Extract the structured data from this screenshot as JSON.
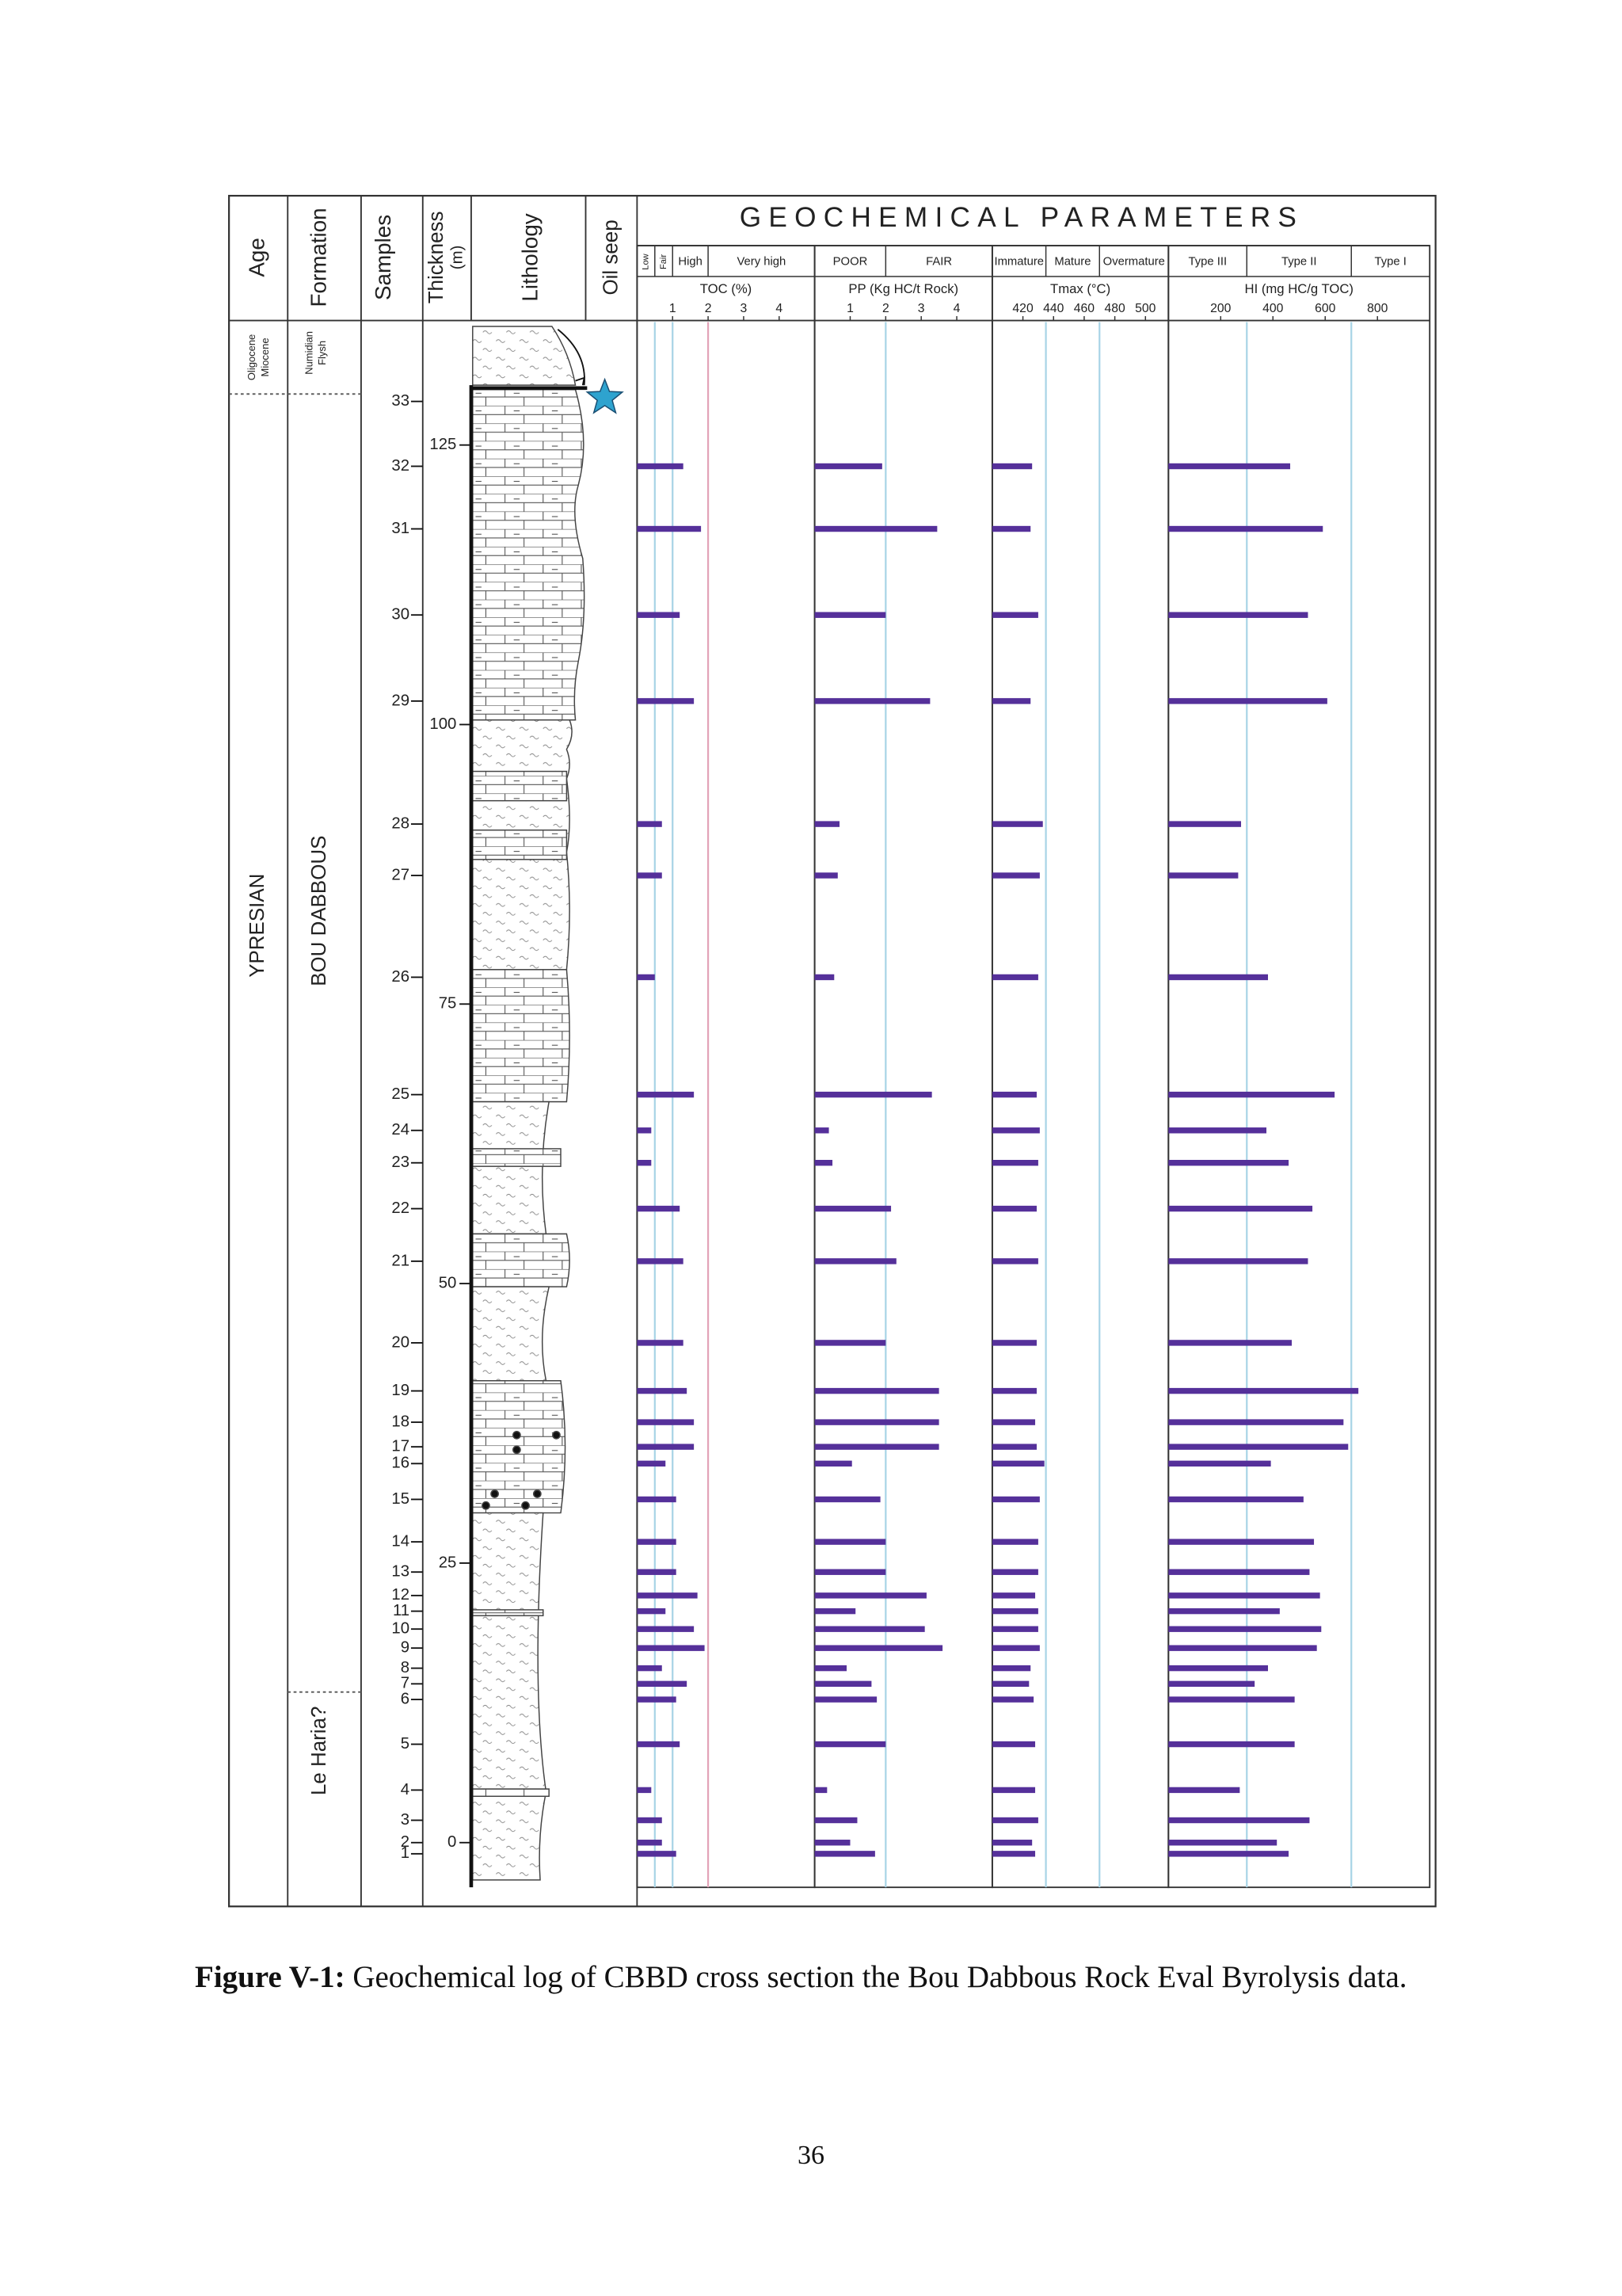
{
  "figure": {
    "columns": {
      "age": "Age",
      "formation": "Formation",
      "samples": "Samples",
      "thickness": [
        "Thickness",
        "(m)"
      ],
      "lithology": "Lithology",
      "oil_seep": "Oil seep"
    },
    "title": "GEOCHEMICAL PARAMETERS",
    "ages": {
      "top": [
        "Oligocene",
        "Miocene"
      ],
      "main": "YPRESIAN"
    },
    "formations": {
      "top": [
        "Numidian",
        "Flysh"
      ],
      "main": "BOU DABBOUS",
      "bottom": "Le Haria?"
    }
  },
  "chart_data": {
    "type": "bar",
    "categories": [
      "1",
      "2",
      "3",
      "4",
      "5",
      "6",
      "7",
      "8",
      "9",
      "10",
      "11",
      "12",
      "13",
      "14",
      "15",
      "16",
      "17",
      "18",
      "19",
      "20",
      "21",
      "22",
      "23",
      "24",
      "25",
      "26",
      "27",
      "28",
      "29",
      "30",
      "31",
      "32",
      "33"
    ],
    "thickness": [
      -1,
      0,
      2,
      4.7,
      8.8,
      12.8,
      14.2,
      15.6,
      17.4,
      19.1,
      20.7,
      22.1,
      24.2,
      26.9,
      30.7,
      33.9,
      35.4,
      37.6,
      40.4,
      44.7,
      52,
      56.7,
      60.8,
      63.7,
      66.9,
      77.4,
      86.5,
      91.1,
      102.1,
      109.8,
      117.5,
      123.1,
      128.9
    ],
    "ylim": [
      -4,
      136
    ],
    "yticks": [
      0,
      25,
      50,
      75,
      100,
      125
    ],
    "panels": [
      {
        "x_label": "TOC (%)",
        "classes": [
          "Low",
          "Fair",
          "High",
          "Very high"
        ],
        "boundaries": [
          0.5,
          1,
          2
        ],
        "boundary_colors": [
          "#a8d4e6",
          "#a8d4e6",
          "#e2a3b8"
        ],
        "xlim": [
          0,
          5
        ],
        "xticks": [
          1,
          2,
          3,
          4
        ],
        "color": "#55309a",
        "values": [
          1.1,
          0.7,
          0.7,
          0.4,
          1.2,
          1.1,
          1.4,
          0.7,
          1.9,
          1.6,
          0.8,
          1.7,
          1.1,
          1.1,
          1.1,
          0.8,
          1.6,
          1.6,
          1.4,
          1.3,
          1.3,
          1.2,
          0.4,
          0.4,
          1.6,
          0.5,
          0.7,
          0.7,
          1.6,
          1.2,
          1.8,
          1.3,
          null
        ]
      },
      {
        "x_label": "PP (Kg HC/t Rock)",
        "classes": [
          "POOR",
          "FAIR"
        ],
        "boundaries": [
          2
        ],
        "boundary_colors": [
          "#a8d4e6"
        ],
        "xlim": [
          0,
          5
        ],
        "xticks": [
          1,
          2,
          3,
          4
        ],
        "color": "#55309a",
        "values": [
          1.7,
          1.0,
          1.2,
          0.35,
          2.0,
          1.75,
          1.6,
          0.9,
          3.6,
          3.1,
          1.15,
          3.15,
          2.0,
          2.0,
          1.85,
          1.05,
          3.5,
          3.5,
          3.5,
          2.0,
          2.3,
          2.15,
          0.5,
          0.4,
          3.3,
          0.55,
          0.65,
          0.7,
          3.25,
          2.0,
          3.45,
          1.9,
          null
        ]
      },
      {
        "x_label": "Tmax (°C)",
        "classes": [
          "Immature",
          "Mature",
          "Overmature"
        ],
        "boundaries": [
          435,
          470
        ],
        "boundary_colors": [
          "#a8d4e6",
          "#a8d4e6"
        ],
        "xlim": [
          400,
          515
        ],
        "xticks": [
          420,
          440,
          460,
          480,
          500
        ],
        "color": "#55309a",
        "values": [
          428,
          426,
          430,
          428,
          428,
          427,
          424,
          425,
          431,
          430,
          430,
          428,
          430,
          430,
          431,
          434,
          429,
          428,
          429,
          429,
          430,
          429,
          430,
          431,
          429,
          430,
          431,
          433,
          425,
          430,
          425,
          426,
          null
        ]
      },
      {
        "x_label": "HI (mg HC/g TOC)",
        "classes": [
          "Type III",
          "Type II",
          "Type I"
        ],
        "boundaries": [
          300,
          700
        ],
        "boundary_colors": [
          "#a8d4e6",
          "#a8d4e6"
        ],
        "xlim": [
          0,
          1000
        ],
        "xticks": [
          200,
          400,
          600,
          800
        ],
        "color": "#55309a",
        "values": [
          460,
          415,
          540,
          273,
          483,
          483,
          330,
          381,
          568,
          585,
          426,
          580,
          540,
          557,
          517,
          392,
          688,
          670,
          727,
          472,
          534,
          551,
          460,
          375,
          636,
          381,
          267,
          278,
          608,
          534,
          591,
          466,
          null
        ]
      }
    ]
  },
  "caption": {
    "label": "Figure V-1:",
    "text": "Geochemical log of CBBD cross section the Bou Dabbous Rock Eval Byrolysis data."
  },
  "page_number": "36"
}
